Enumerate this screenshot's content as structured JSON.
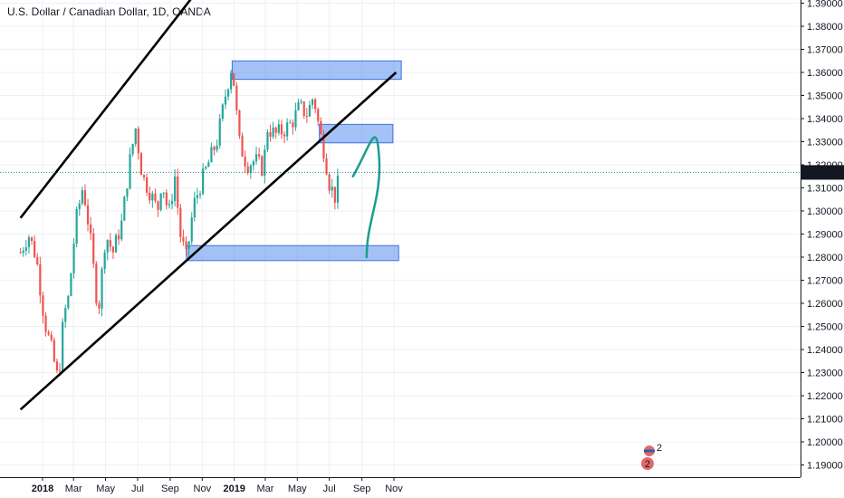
{
  "header": {
    "title": "U.S. Dollar / Canadian Dollar, 1D, OANDA"
  },
  "colors": {
    "up": "#26a69a",
    "down": "#ef5350",
    "zone_fill": "#5b8ff0",
    "annotation": "#1a9e8f",
    "price_tag": "#131722",
    "grid": "#eef0f3"
  },
  "chart_data": {
    "type": "candlestick",
    "symbol": "U.S. Dollar / Canadian Dollar",
    "interval": "1D",
    "source": "OANDA",
    "last_price": "1.31670",
    "y_axis": {
      "ylim": [
        1.185,
        1.3935
      ],
      "ticks": [
        "1.39000",
        "1.38000",
        "1.37000",
        "1.36000",
        "1.35000",
        "1.34000",
        "1.33000",
        "1.32000",
        "1.31000",
        "1.30000",
        "1.29000",
        "1.28000",
        "1.27000",
        "1.26000",
        "1.25000",
        "1.24000",
        "1.23000",
        "1.22000",
        "1.21000",
        "1.20000",
        "1.19000"
      ]
    },
    "x_axis": {
      "ticks": [
        {
          "label": "2018",
          "date": "2018-01-01",
          "bold": true
        },
        {
          "label": "Mar",
          "date": "2018-03-01",
          "bold": false
        },
        {
          "label": "May",
          "date": "2018-05-01",
          "bold": false
        },
        {
          "label": "Jul",
          "date": "2018-07-01",
          "bold": false
        },
        {
          "label": "Sep",
          "date": "2018-09-01",
          "bold": false
        },
        {
          "label": "Nov",
          "date": "2018-11-01",
          "bold": false
        },
        {
          "label": "2019",
          "date": "2019-01-01",
          "bold": true
        },
        {
          "label": "Mar",
          "date": "2019-03-01",
          "bold": false
        },
        {
          "label": "May",
          "date": "2019-05-01",
          "bold": false
        },
        {
          "label": "Jul",
          "date": "2019-07-01",
          "bold": false
        },
        {
          "label": "Sep",
          "date": "2019-09-01",
          "bold": false
        },
        {
          "label": "Nov",
          "date": "2019-11-01",
          "bold": false
        }
      ]
    },
    "price_path": [
      [
        "2017-11-20",
        1.282
      ],
      [
        "2017-12-05",
        1.29
      ],
      [
        "2017-12-20",
        1.28
      ],
      [
        "2018-01-05",
        1.252
      ],
      [
        "2018-01-18",
        1.24
      ],
      [
        "2018-01-31",
        1.226
      ],
      [
        "2018-02-10",
        1.254
      ],
      [
        "2018-02-20",
        1.263
      ],
      [
        "2018-03-05",
        1.295
      ],
      [
        "2018-03-19",
        1.311
      ],
      [
        "2018-04-01",
        1.29
      ],
      [
        "2018-04-17",
        1.256
      ],
      [
        "2018-05-01",
        1.29
      ],
      [
        "2018-05-15",
        1.282
      ],
      [
        "2018-06-01",
        1.295
      ],
      [
        "2018-06-15",
        1.32
      ],
      [
        "2018-06-27",
        1.336
      ],
      [
        "2018-07-10",
        1.315
      ],
      [
        "2018-07-25",
        1.308
      ],
      [
        "2018-08-08",
        1.3
      ],
      [
        "2018-08-16",
        1.314
      ],
      [
        "2018-08-29",
        1.298
      ],
      [
        "2018-09-10",
        1.315
      ],
      [
        "2018-09-20",
        1.29
      ],
      [
        "2018-10-02",
        1.279
      ],
      [
        "2018-10-15",
        1.302
      ],
      [
        "2018-10-31",
        1.313
      ],
      [
        "2018-11-15",
        1.322
      ],
      [
        "2018-11-30",
        1.331
      ],
      [
        "2018-12-15",
        1.35
      ],
      [
        "2018-12-28",
        1.364
      ],
      [
        "2019-01-10",
        1.33
      ],
      [
        "2019-01-25",
        1.32
      ],
      [
        "2019-02-10",
        1.322
      ],
      [
        "2019-02-25",
        1.318
      ],
      [
        "2019-03-05",
        1.336
      ],
      [
        "2019-03-20",
        1.333
      ],
      [
        "2019-04-05",
        1.335
      ],
      [
        "2019-04-20",
        1.338
      ],
      [
        "2019-05-05",
        1.345
      ],
      [
        "2019-05-20",
        1.342
      ],
      [
        "2019-06-01",
        1.35
      ],
      [
        "2019-06-12",
        1.335
      ],
      [
        "2019-06-22",
        1.325
      ],
      [
        "2019-07-01",
        1.312
      ],
      [
        "2019-07-12",
        1.306
      ],
      [
        "2019-07-22",
        1.3167
      ]
    ],
    "annotations": {
      "channel_upper": [
        [
          "2017-11-20",
          1.297
        ],
        [
          "2019-01-15",
          1.42
        ]
      ],
      "channel_lower": [
        [
          "2017-11-20",
          1.214
        ],
        [
          "2019-11-05",
          1.36
        ]
      ],
      "zones": [
        {
          "from": "2018-12-28",
          "to": "2019-11-15",
          "low": 1.357,
          "high": 1.365
        },
        {
          "from": "2019-06-12",
          "to": "2019-10-30",
          "low": 1.3295,
          "high": 1.3375
        },
        {
          "from": "2018-10-02",
          "to": "2019-11-10",
          "low": 1.2785,
          "high": 1.285
        }
      ],
      "projection": [
        [
          "2019-08-15",
          1.315
        ],
        [
          "2019-09-20",
          1.331
        ],
        [
          "2019-09-25",
          1.31
        ],
        [
          "2019-09-10",
          1.28
        ]
      ]
    }
  }
}
